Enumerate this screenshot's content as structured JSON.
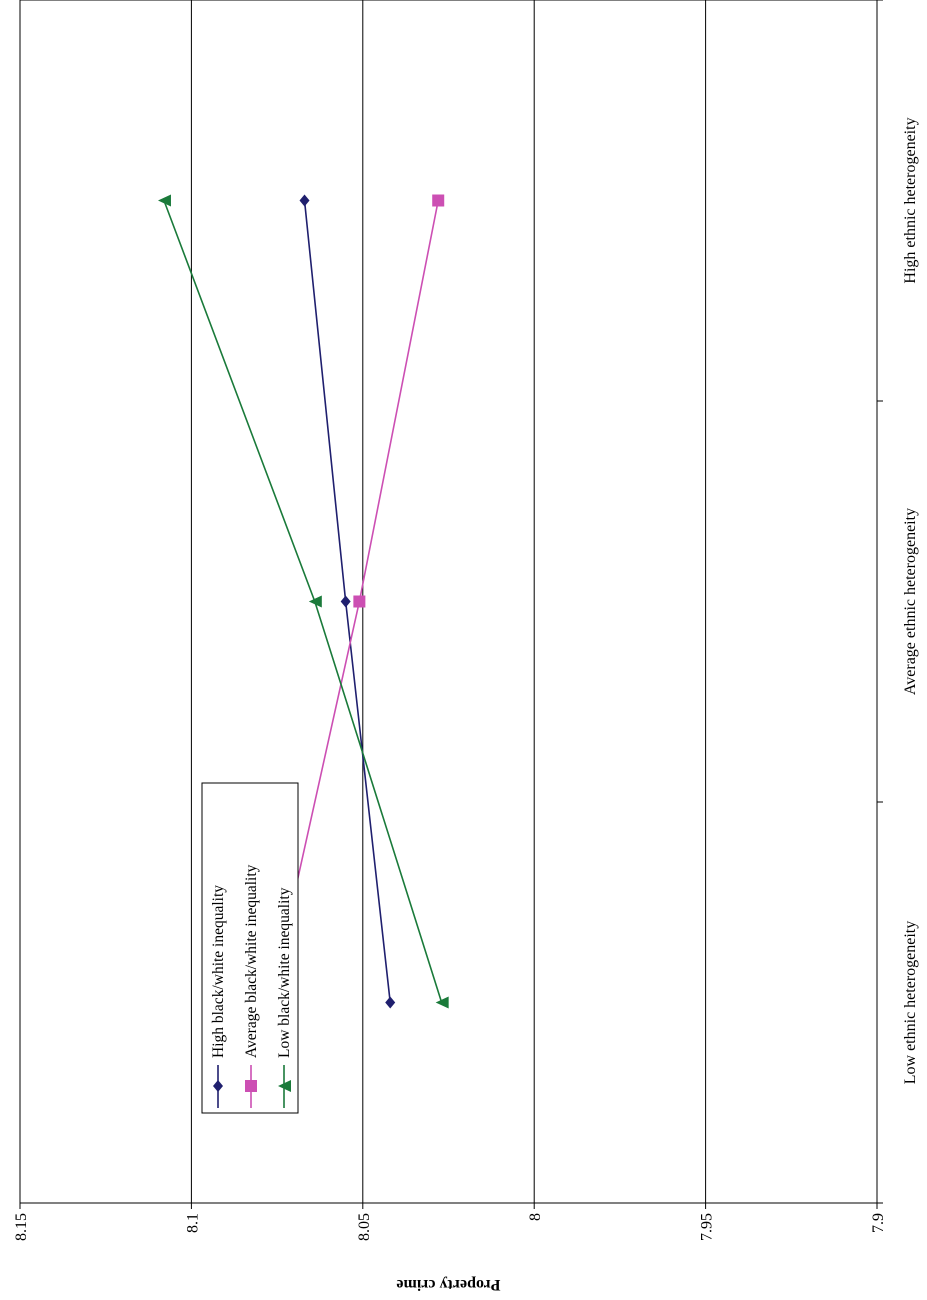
{
  "chart_data": {
    "type": "line",
    "title": "",
    "ylabel": "Property crime",
    "xlabel": "",
    "categories": [
      "Low ethnic heterogeneity",
      "Average ethnic heterogeneity",
      "High ethnic heterogeneity"
    ],
    "ylim": [
      7.9,
      8.15
    ],
    "yticks": [
      "8.15",
      "8.1",
      "8.05",
      "8",
      "7.95",
      "7.9"
    ],
    "ytick_values": [
      8.15,
      8.1,
      8.05,
      8.0,
      7.95,
      7.9
    ],
    "grid": true,
    "legend_position": "bottom-left",
    "series": [
      {
        "name": "High black/white inequality",
        "values": [
          8.042,
          8.055,
          8.067
        ],
        "color": "#1f1f6e",
        "marker": "diamond"
      },
      {
        "name": "Average black/white inequality",
        "values": [
          8.077,
          8.051,
          8.028
        ],
        "color": "#cc4fb3",
        "marker": "square"
      },
      {
        "name": "Low black/white inequality",
        "values": [
          8.027,
          8.064,
          8.108
        ],
        "color": "#1a7a3a",
        "marker": "triangle"
      }
    ]
  }
}
